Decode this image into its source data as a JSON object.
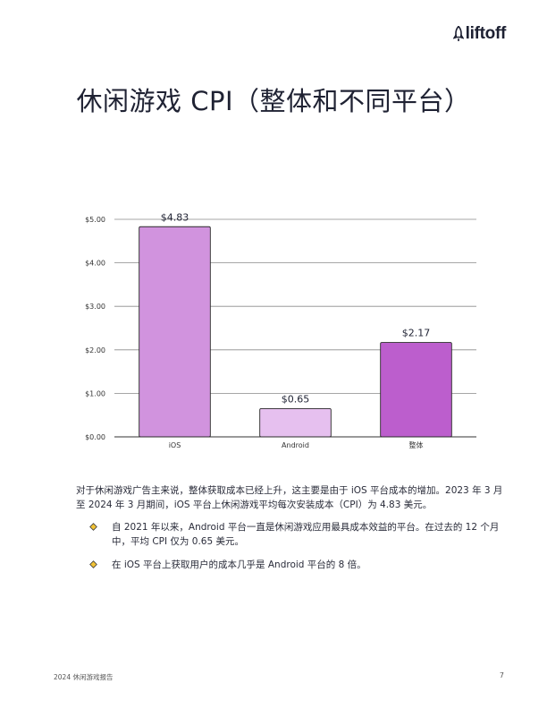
{
  "brand": {
    "name": "liftoff"
  },
  "title": "休闲游戏 CPI（整体和不同平台）",
  "chart_data": {
    "type": "bar",
    "categories": [
      "iOS",
      "Android",
      "整体"
    ],
    "values": [
      4.83,
      0.65,
      2.17
    ],
    "data_labels": [
      "$4.83",
      "$0.65",
      "$2.17"
    ],
    "yticks": [
      0,
      1,
      2,
      3,
      4,
      5
    ],
    "ytick_labels": [
      "$0.00",
      "$1.00",
      "$2.00",
      "$3.00",
      "$4.00",
      "$5.00"
    ],
    "ylim": [
      0,
      5
    ],
    "grid": true,
    "colors": [
      "#d193de",
      "#e6c0ef",
      "#bc5ecd"
    ],
    "xlabel": "",
    "ylabel": ""
  },
  "body": {
    "paragraph": "对于休闲游戏广告主来说，整体获取成本已经上升，这主要是由于 iOS 平台成本的增加。2023 年 3 月至 2024 年 3 月期间，iOS 平台上休闲游戏平均每次安装成本（CPI）为 4.83 美元。",
    "bullets": [
      "自 2021 年以来，Android 平台一直是休闲游戏应用最具成本效益的平台。在过去的 12 个月中，平均 CPI 仅为 0.65 美元。",
      "在 iOS 平台上获取用户的成本几乎是 Android 平台的 8 倍。"
    ],
    "bullet_color": "#f2c335"
  },
  "footer": {
    "report": "2024 休闲游戏报告",
    "page_number": "7"
  }
}
